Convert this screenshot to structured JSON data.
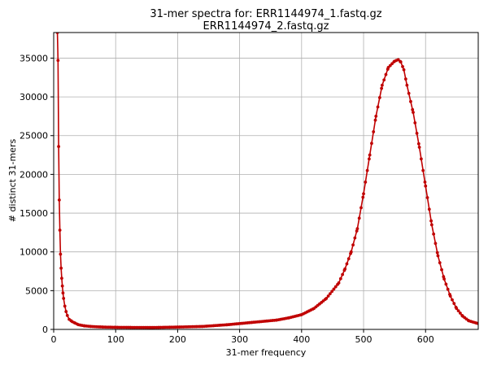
{
  "chart_data": {
    "type": "line",
    "title": [
      "31-mer spectra for: ERR1144974_1.fastq.gz",
      "ERR1144974_2.fastq.gz"
    ],
    "xlabel": "31-mer frequency",
    "ylabel": "# distinct 31-mers",
    "xlim": [
      0,
      685
    ],
    "ylim": [
      0,
      38300
    ],
    "xticks": [
      0,
      100,
      200,
      300,
      400,
      500,
      600
    ],
    "yticks": [
      0,
      5000,
      10000,
      15000,
      20000,
      25000,
      30000,
      35000
    ],
    "grid": true,
    "color": "#c00000",
    "series": [
      {
        "x": [
          6,
          7,
          8,
          9,
          10,
          11,
          12,
          13,
          14,
          15,
          16,
          18,
          20,
          22,
          25,
          30,
          35,
          40,
          50,
          60,
          80,
          100,
          130,
          160,
          200,
          240,
          280,
          320,
          360,
          380,
          400,
          420,
          440,
          460,
          470,
          480,
          490,
          500,
          510,
          520,
          530,
          540,
          550,
          556,
          560,
          565,
          570,
          580,
          590,
          600,
          610,
          620,
          630,
          640,
          650,
          660,
          670,
          685
        ],
        "y": [
          38300,
          34700,
          23600,
          16700,
          12800,
          9700,
          7900,
          6600,
          5600,
          4700,
          4000,
          3000,
          2300,
          1800,
          1300,
          1000,
          800,
          600,
          450,
          380,
          300,
          270,
          250,
          240,
          300,
          380,
          600,
          900,
          1200,
          1500,
          1900,
          2700,
          4000,
          6000,
          7800,
          10000,
          13000,
          17500,
          22500,
          27500,
          31500,
          33800,
          34600,
          34800,
          34500,
          33500,
          31500,
          28000,
          23500,
          18500,
          13500,
          9500,
          6500,
          4300,
          2700,
          1700,
          1100,
          750
        ]
      }
    ]
  }
}
